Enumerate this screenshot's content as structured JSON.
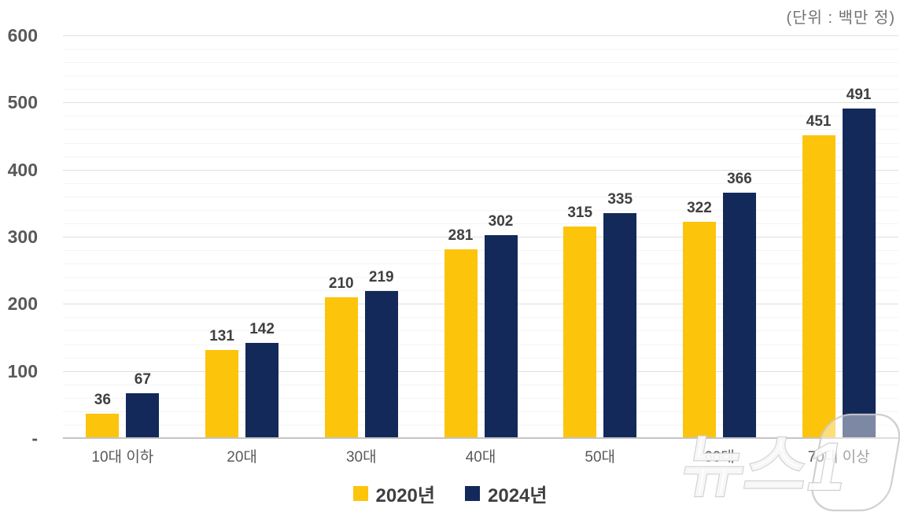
{
  "unit_label": "(단위 : 백만 정)",
  "watermark": {
    "text": "뉴스1"
  },
  "chart_data": {
    "type": "bar",
    "title": "",
    "subtitle_unit": "(단위 : 백만 정)",
    "categories": [
      "10대 이하",
      "20대",
      "30대",
      "40대",
      "50대",
      "60대",
      "70대 이상"
    ],
    "series": [
      {
        "name": "2020년",
        "color": "#FDC40C",
        "values": [
          36,
          131,
          210,
          281,
          315,
          322,
          451
        ]
      },
      {
        "name": "2024년",
        "color": "#13295A",
        "values": [
          67,
          142,
          219,
          302,
          335,
          366,
          491
        ]
      }
    ],
    "ylim": [
      0,
      600
    ],
    "y_major_step": 100,
    "y_minor_step": 20,
    "y_tick_labels": [
      "-",
      "100",
      "200",
      "300",
      "400",
      "500",
      "600"
    ],
    "grid": "horizontal",
    "legend_position": "bottom",
    "data_labels": true
  }
}
